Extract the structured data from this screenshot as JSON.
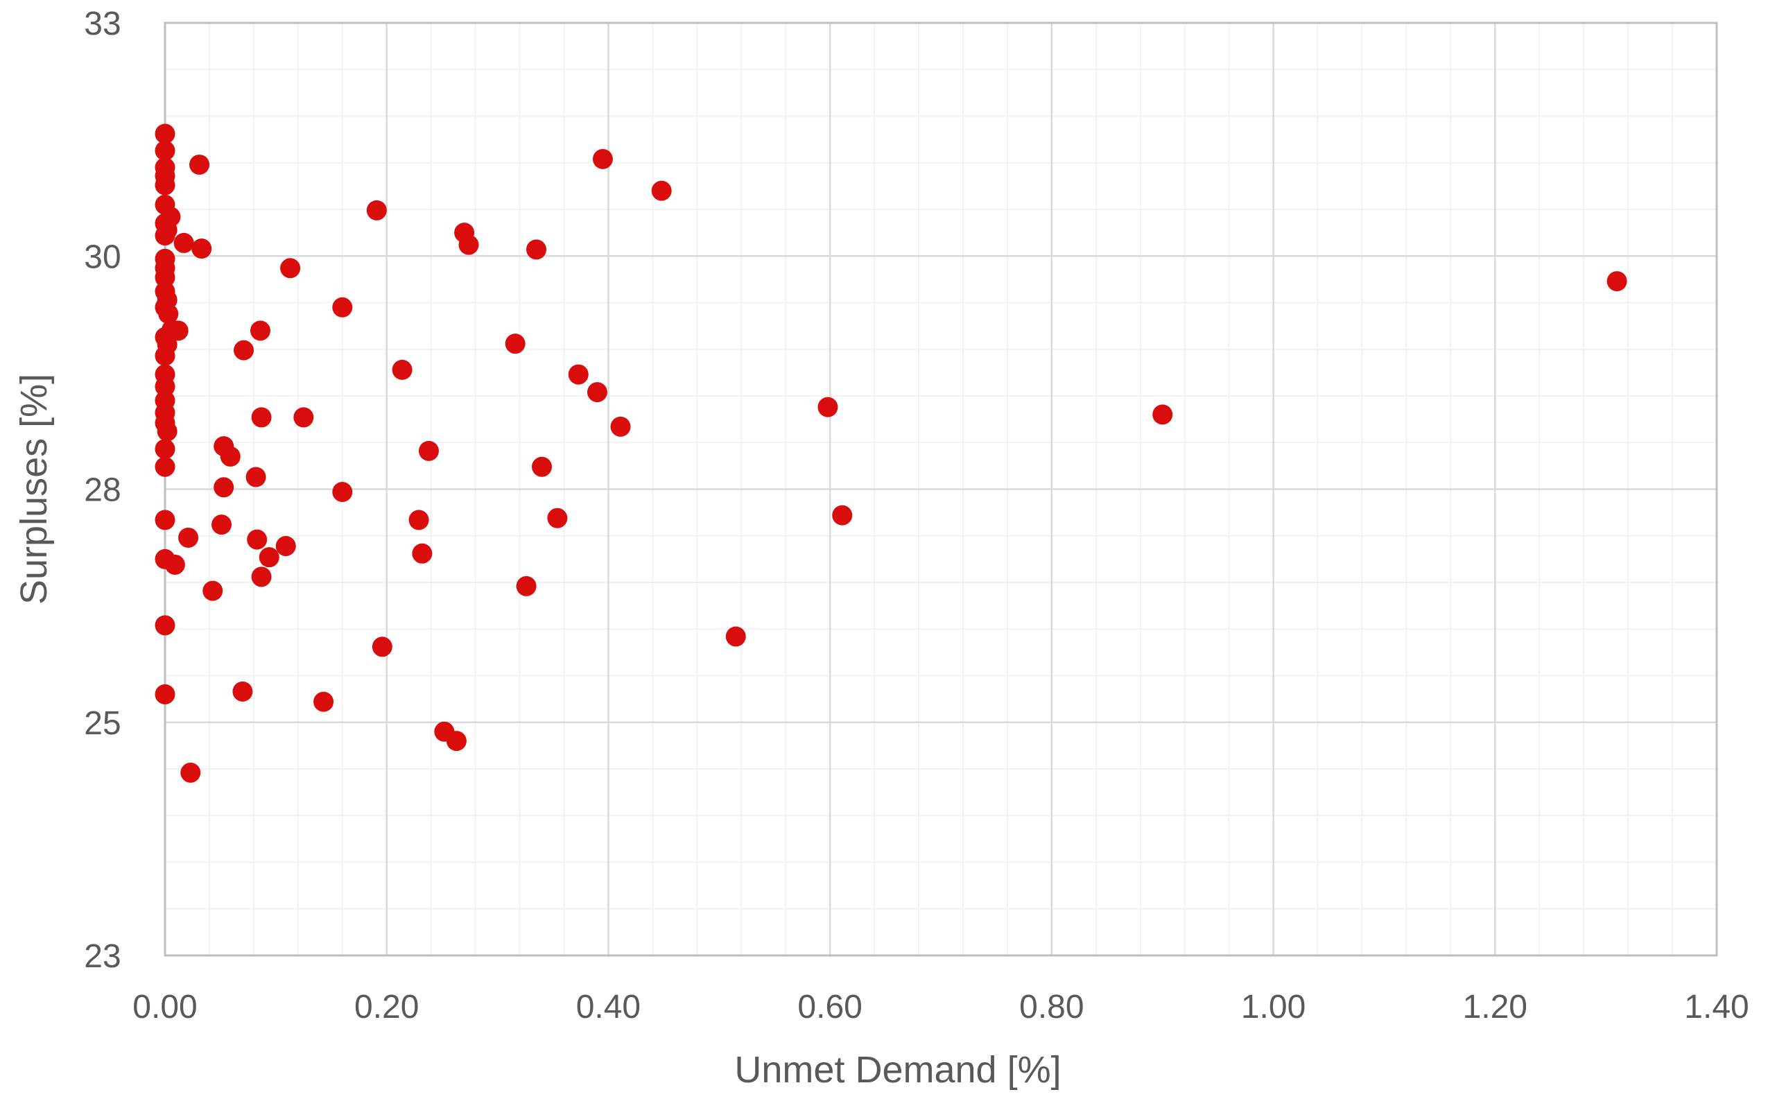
{
  "chart_data": {
    "type": "scatter",
    "title": "",
    "xlabel": "Unmet Demand [%]",
    "ylabel": "Surpluses [%]",
    "xlim": [
      0,
      1.4
    ],
    "ylim": [
      22.5,
      32.5
    ],
    "x_ticks": {
      "values": [
        0,
        0.2,
        0.4,
        0.6,
        0.8,
        1.0,
        1.2,
        1.4
      ],
      "labels": [
        "0.00",
        "0.20",
        "0.40",
        "0.60",
        "0.80",
        "1.00",
        "1.20",
        "1.40"
      ]
    },
    "y_ticks": {
      "values": [
        22.5,
        25,
        27.5,
        30,
        32.5
      ],
      "labels": [
        "23",
        "25",
        "28",
        "30",
        "33"
      ]
    },
    "x_minor_unit": 0.04,
    "y_minor_unit": 0.5,
    "grid": "major+minor",
    "legend_position": "none",
    "marker_color": "#da0d0d",
    "minor_grid_color": "#f2f2f2",
    "major_grid_color": "#d9d9d9",
    "border_color": "#bfbfbf",
    "text_color": "#595959",
    "points": [
      [
        0.0,
        31.31
      ],
      [
        0.0,
        31.13
      ],
      [
        0.0,
        30.95
      ],
      [
        0.0,
        30.86
      ],
      [
        0.0,
        30.76
      ],
      [
        0.0,
        30.55
      ],
      [
        0.005,
        30.42
      ],
      [
        0.0,
        30.35
      ],
      [
        0.002,
        30.28
      ],
      [
        0.0,
        30.22
      ],
      [
        0.017,
        30.14
      ],
      [
        0.033,
        30.08
      ],
      [
        0.0,
        29.97
      ],
      [
        0.0,
        29.87
      ],
      [
        0.0,
        29.77
      ],
      [
        0.0,
        29.62
      ],
      [
        0.002,
        29.53
      ],
      [
        0.0,
        29.45
      ],
      [
        0.003,
        29.38
      ],
      [
        0.006,
        29.21
      ],
      [
        0.012,
        29.2
      ],
      [
        0.0,
        29.13
      ],
      [
        0.002,
        29.05
      ],
      [
        0.0,
        28.93
      ],
      [
        0.0,
        28.73
      ],
      [
        0.031,
        30.98
      ],
      [
        0.191,
        30.49
      ],
      [
        0.27,
        30.25
      ],
      [
        0.274,
        30.12
      ],
      [
        0.113,
        29.87
      ],
      [
        0.16,
        29.45
      ],
      [
        0.086,
        29.2
      ],
      [
        0.071,
        28.99
      ],
      [
        0.214,
        28.78
      ],
      [
        0.0,
        28.6
      ],
      [
        0.0,
        28.45
      ],
      [
        0.0,
        28.32
      ],
      [
        0.0,
        28.21
      ],
      [
        0.002,
        28.12
      ],
      [
        0.0,
        27.93
      ],
      [
        0.0,
        27.74
      ],
      [
        0.0,
        27.17
      ],
      [
        0.0,
        26.75
      ],
      [
        0.009,
        26.69
      ],
      [
        0.0,
        26.04
      ],
      [
        0.021,
        26.98
      ],
      [
        0.053,
        27.96
      ],
      [
        0.059,
        27.85
      ],
      [
        0.053,
        27.52
      ],
      [
        0.051,
        27.12
      ],
      [
        0.087,
        28.27
      ],
      [
        0.125,
        28.27
      ],
      [
        0.082,
        27.63
      ],
      [
        0.083,
        26.96
      ],
      [
        0.094,
        26.77
      ],
      [
        0.109,
        26.89
      ],
      [
        0.087,
        26.56
      ],
      [
        0.043,
        26.41
      ],
      [
        0.16,
        27.47
      ],
      [
        0.238,
        27.91
      ],
      [
        0.229,
        27.17
      ],
      [
        0.232,
        26.81
      ],
      [
        0.196,
        25.81
      ],
      [
        0.0,
        25.3
      ],
      [
        0.07,
        25.33
      ],
      [
        0.143,
        25.22
      ],
      [
        0.252,
        24.9
      ],
      [
        0.263,
        24.8
      ],
      [
        0.023,
        24.46
      ],
      [
        0.395,
        31.04
      ],
      [
        0.448,
        30.7
      ],
      [
        0.335,
        30.07
      ],
      [
        0.316,
        29.06
      ],
      [
        0.373,
        28.73
      ],
      [
        0.39,
        28.54
      ],
      [
        0.411,
        28.17
      ],
      [
        0.34,
        27.74
      ],
      [
        0.354,
        27.19
      ],
      [
        0.326,
        26.46
      ],
      [
        0.515,
        25.92
      ],
      [
        0.598,
        28.38
      ],
      [
        0.611,
        27.22
      ],
      [
        0.9,
        28.3
      ],
      [
        1.31,
        29.73
      ]
    ]
  }
}
